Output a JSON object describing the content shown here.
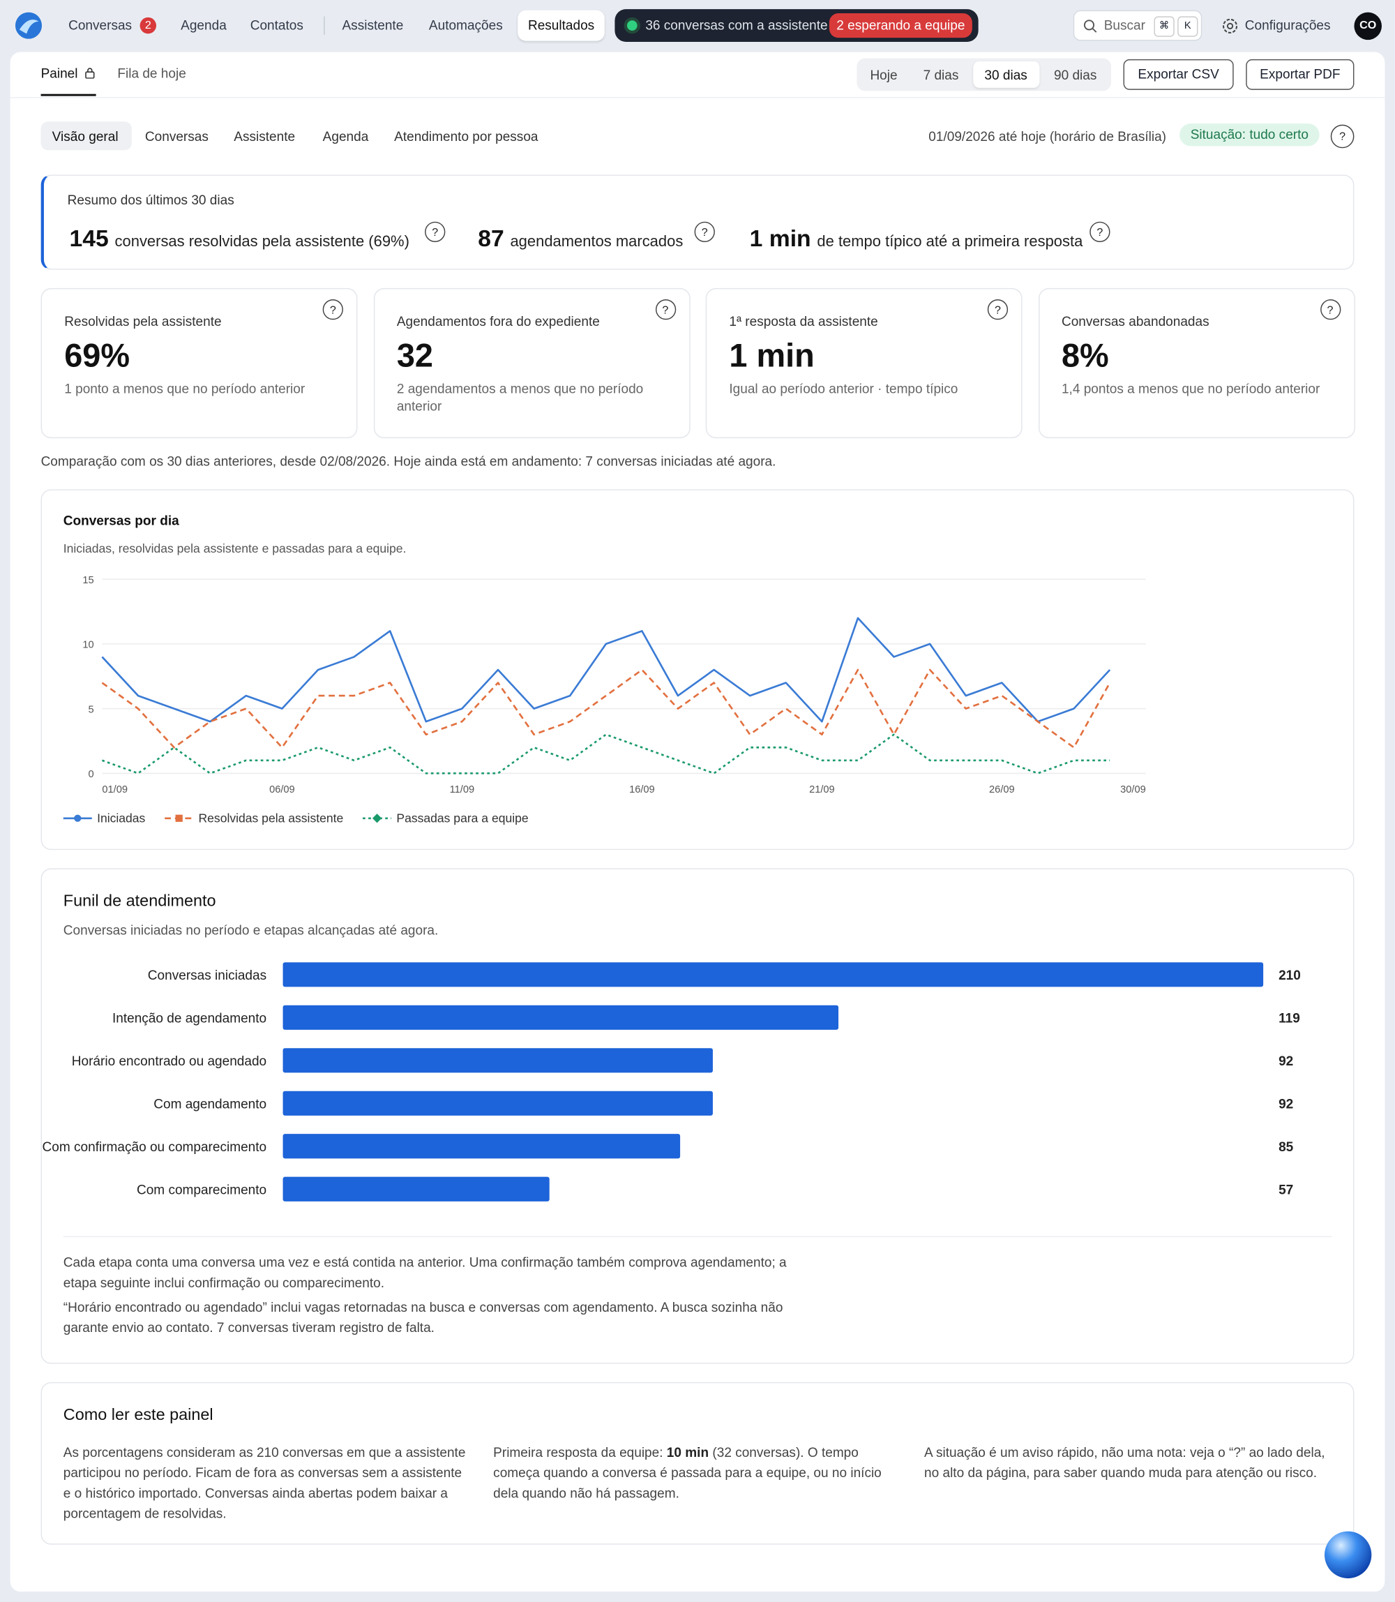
{
  "nav": {
    "items": [
      "Conversas",
      "Agenda",
      "Contatos",
      "Assistente",
      "Automações",
      "Resultados"
    ],
    "badge": 2,
    "live": "36 conversas com a assistente",
    "waiting": "2 esperando a equipe",
    "search": "Buscar",
    "keys": [
      "⌘",
      "K"
    ],
    "settings": "Configurações",
    "avatar": "CO"
  },
  "tabs": [
    "Painel",
    "Fila de hoje"
  ],
  "ranges": [
    "Hoje",
    "7 dias",
    "30 dias",
    "90 dias"
  ],
  "exports": [
    "Exportar CSV",
    "Exportar PDF"
  ],
  "subtabs": [
    "Visão geral",
    "Conversas",
    "Assistente",
    "Agenda",
    "Atendimento por pessoa"
  ],
  "period": "01/09/2026 até hoje (horário de Brasília)",
  "situation": "Situação: tudo certo",
  "help": "?",
  "summary": {
    "title": "Resumo dos últimos 30 dias",
    "items": [
      {
        "value": 145,
        "label": "conversas resolvidas pela assistente (69%)"
      },
      {
        "value": 87,
        "label": "agendamentos marcados"
      },
      {
        "value": "1 min",
        "label": "de tempo típico até a primeira resposta"
      }
    ]
  },
  "cards": [
    {
      "title": "Resolvidas pela assistente",
      "value": "69%",
      "note": "1 ponto a menos que no período anterior"
    },
    {
      "title": "Agendamentos fora do expediente",
      "value": 32,
      "note": "2 agendamentos a menos que no período anterior"
    },
    {
      "title": "1ª resposta da assistente",
      "value": "1 min",
      "note": "Igual ao período anterior · tempo típico"
    },
    {
      "title": "Conversas abandonadas",
      "value": "8%",
      "note": "1,4 pontos a menos que no período anterior"
    }
  ],
  "comparison": "Comparação com os 30 dias anteriores, desde 02/08/2026. Hoje ainda está em andamento: 7 conversas iniciadas até agora.",
  "chart_data": [
    {
      "type": "line",
      "title": "Conversas por dia",
      "subtitle": "Iniciadas, resolvidas pela assistente e passadas para a equipe.",
      "x": [
        1,
        2,
        3,
        4,
        5,
        6,
        7,
        8,
        9,
        10,
        11,
        12,
        13,
        14,
        15,
        16,
        17,
        18,
        19,
        20,
        21,
        22,
        23,
        24,
        25,
        26,
        27,
        28,
        29
      ],
      "xlim": [
        1,
        30
      ],
      "xticks": [
        {
          "value": 1,
          "label": "01/09"
        },
        {
          "value": 6,
          "label": "06/09"
        },
        {
          "value": 11,
          "label": "11/09"
        },
        {
          "value": 16,
          "label": "16/09"
        },
        {
          "value": 21,
          "label": "21/09"
        },
        {
          "value": 26,
          "label": "26/09"
        },
        {
          "value": 30,
          "label": "30/09"
        }
      ],
      "ylim": [
        0,
        15
      ],
      "yticks": [
        0,
        5,
        10,
        15
      ],
      "grid": true,
      "legend": "bottom-left",
      "series": [
        {
          "name": "Iniciadas",
          "color": "#3a7bd5",
          "dash": "solid",
          "marker": "circle",
          "values": [
            9,
            6,
            5,
            4,
            6,
            5,
            8,
            9,
            11,
            4,
            5,
            8,
            5,
            6,
            10,
            11,
            6,
            8,
            6,
            7,
            4,
            12,
            9,
            10,
            6,
            7,
            4,
            5,
            8
          ]
        },
        {
          "name": "Resolvidas pela assistente",
          "color": "#e2703f",
          "dash": "dashed",
          "marker": "square",
          "values": [
            7,
            5,
            2,
            4,
            5,
            2,
            6,
            6,
            7,
            3,
            4,
            7,
            3,
            4,
            6,
            8,
            5,
            7,
            3,
            5,
            3,
            8,
            3,
            8,
            5,
            6,
            4,
            2,
            7
          ]
        },
        {
          "name": "Passadas para a equipe",
          "color": "#1a9a6b",
          "dash": "dotted",
          "marker": "diamond",
          "values": [
            1,
            0,
            2,
            0,
            1,
            1,
            2,
            1,
            2,
            0,
            0,
            0,
            2,
            1,
            3,
            2,
            1,
            0,
            2,
            2,
            1,
            1,
            3,
            1,
            1,
            1,
            0,
            1,
            1
          ]
        }
      ]
    },
    {
      "type": "bar",
      "orientation": "horizontal",
      "title": "Funil de atendimento",
      "subtitle": "Conversas iniciadas no período e etapas alcançadas até agora.",
      "categories": [
        "Conversas iniciadas",
        "Intenção de agendamento",
        "Horário encontrado ou agendado",
        "Com agendamento",
        "Com confirmação ou comparecimento",
        "Com comparecimento"
      ],
      "values": [
        210,
        119,
        92,
        92,
        85,
        57
      ],
      "color": "#1d63d9",
      "xlim": [
        0,
        210
      ]
    }
  ],
  "funnel_notes": [
    "Cada etapa conta uma conversa uma vez e está contida na anterior. Uma confirmação também comprova agendamento; a etapa seguinte inclui confirmação ou comparecimento.",
    "“Horário encontrado ou agendado” inclui vagas retornadas na busca e conversas com agendamento. A busca sozinha não garante envio ao contato. 7 conversas tiveram registro de falta."
  ],
  "guide": {
    "title": "Como ler este painel",
    "columns": [
      [
        "As porcentagens consideram as 210 conversas em que a assistente participou no período. Ficam de fora as conversas sem a assistente e o histórico importado. Conversas ainda abertas podem baixar a porcentagem de resolvidas."
      ],
      [
        "Primeira resposta da equipe: ",
        "10 min",
        " (32 conversas). O tempo começa quando a conversa é passada para a equipe, ou no início dela quando não há passagem."
      ],
      [
        "A situação é um aviso rápido, não uma nota: veja o “?” ao lado dela, no alto da página, para saber quando muda para atenção ou risco."
      ]
    ]
  }
}
